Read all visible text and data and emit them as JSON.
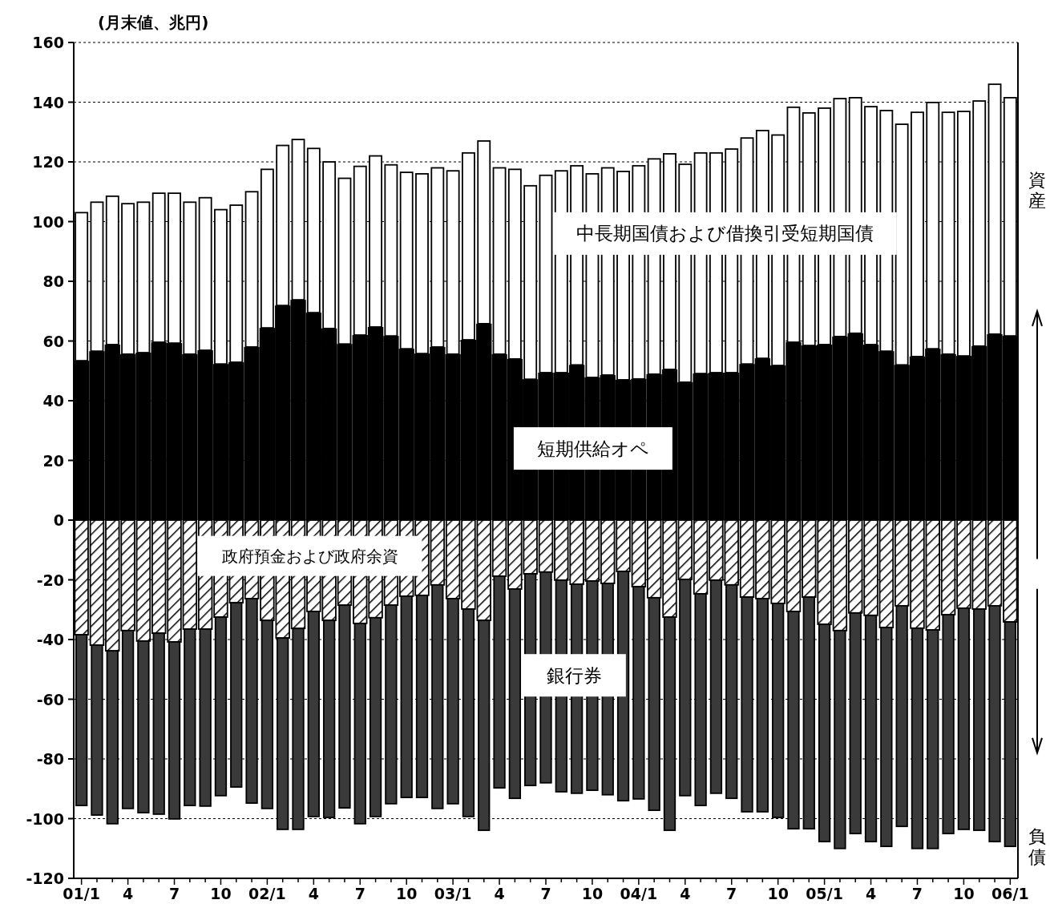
{
  "chart_data": {
    "type": "bar",
    "stacked": true,
    "ylabel": "(月末値、兆円)",
    "categories": [
      "01/1",
      null,
      null,
      "4",
      null,
      null,
      "7",
      null,
      null,
      "10",
      null,
      null,
      "02/1",
      null,
      null,
      "4",
      null,
      null,
      "7",
      null,
      null,
      "10",
      null,
      null,
      "03/1",
      null,
      null,
      "4",
      null,
      null,
      "7",
      null,
      null,
      "10",
      null,
      null,
      "04/1",
      null,
      null,
      "4",
      null,
      null,
      "7",
      null,
      null,
      "10",
      null,
      null,
      "05/1",
      null,
      null,
      "4",
      null,
      null,
      "7",
      null,
      null,
      "10",
      null,
      null,
      "06/1"
    ],
    "series": [
      {
        "name": "短期供給オペ",
        "color": "#000000",
        "values": [
          53.4,
          56.6,
          58.8,
          55.6,
          56.1,
          59.6,
          59.3,
          55.6,
          56.9,
          52.3,
          52.9,
          58,
          64.4,
          71.9,
          73.8,
          69.5,
          64.2,
          59,
          62,
          64.7,
          61.7,
          57.4,
          55.8,
          58,
          55.6,
          60.4,
          65.8,
          55.6,
          54,
          47.2,
          49.4,
          49.4,
          52,
          47.8,
          48.6,
          47,
          47.3,
          48.9,
          50.5,
          46.2,
          49.1,
          49.4,
          49.4,
          52.3,
          54.2,
          51.8,
          59.6,
          58.5,
          58.8,
          61.5,
          62.6,
          58.8,
          56.6,
          52,
          54.8,
          57.4,
          55.6,
          55,
          58.3,
          62.3,
          61.7
        ]
      },
      {
        "name": "中長期国債および借換引受短期国債",
        "color": "#ffffff",
        "values": [
          49.6,
          49.9,
          49.7,
          50.4,
          50.4,
          49.9,
          50.2,
          50.9,
          51.1,
          51.7,
          52.6,
          52,
          53.1,
          53.6,
          53.7,
          55,
          55.8,
          55.5,
          56.5,
          57.3,
          57.3,
          59.1,
          60.2,
          60,
          61.4,
          62.6,
          61.2,
          62.4,
          63.5,
          64.8,
          66.1,
          67.6,
          66.7,
          68.2,
          69.4,
          69.8,
          71.4,
          72.1,
          72.2,
          73,
          73.9,
          73.6,
          74.9,
          75.7,
          76.3,
          77.2,
          78.7,
          77.9,
          79.2,
          79.7,
          78.9,
          79.7,
          80.6,
          80.6,
          81.8,
          82.5,
          81,
          81.9,
          82.1,
          83.7,
          79.8
        ]
      },
      {
        "name": "政府預金および政府余資",
        "color": "#000000",
        "values": [
          -38.4,
          -41.9,
          -43.8,
          -37,
          -40.5,
          -37.9,
          -40.8,
          -36.5,
          -36.5,
          -32.5,
          -27.7,
          -26.3,
          -33.6,
          -39.5,
          -36.3,
          -30.6,
          -33.6,
          -28.5,
          -34.6,
          -32.7,
          -28.5,
          -25.5,
          -25.2,
          -21.7,
          -26.3,
          -29.8,
          -33.6,
          -18.8,
          -23.1,
          -18,
          -17.4,
          -20.1,
          -21.5,
          -20.4,
          -21.2,
          -17.2,
          -22.3,
          -26,
          -32.5,
          -19.9,
          -24.7,
          -20.1,
          -21.7,
          -25.8,
          -26.3,
          -27.9,
          -30.6,
          -25.8,
          -34.9,
          -37,
          -31.1,
          -31.9,
          -36,
          -28.7,
          -36.2,
          -36.8,
          -31.7,
          -29.5,
          -29.8,
          -28.7,
          -34.1
        ]
      },
      {
        "name": "銀行券",
        "color": "#3a3a3a",
        "values": [
          -57.2,
          -56.9,
          -57.9,
          -59.6,
          -57.5,
          -60.6,
          -59.3,
          -59.1,
          -59.3,
          -59.8,
          -61.7,
          -68.5,
          -63,
          -64.1,
          -67.3,
          -68.7,
          -66,
          -67.9,
          -67.1,
          -66.6,
          -66.5,
          -67.4,
          -67.7,
          -74.9,
          -68.7,
          -69.5,
          -70.3,
          -70.9,
          -70.1,
          -70.9,
          -70.6,
          -70.9,
          -70,
          -70.1,
          -70.8,
          -76.8,
          -71.1,
          -71.2,
          -71.4,
          -72.4,
          -70.9,
          -71.4,
          -71.5,
          -71.9,
          -71.4,
          -71.7,
          -72.8,
          -77.6,
          -72.8,
          -73,
          -73.9,
          -75.8,
          -73.3,
          -73.9,
          -73.8,
          -73.2,
          -73.3,
          -74.1,
          -74.1,
          -79,
          -75.2
        ]
      }
    ],
    "ylim": [
      -120,
      160
    ],
    "yticks": [
      -120,
      -100,
      -80,
      -60,
      -40,
      -20,
      0,
      20,
      40,
      60,
      80,
      100,
      120,
      140,
      160
    ],
    "grid": "y",
    "annotations": [
      "資産",
      "負債"
    ]
  }
}
